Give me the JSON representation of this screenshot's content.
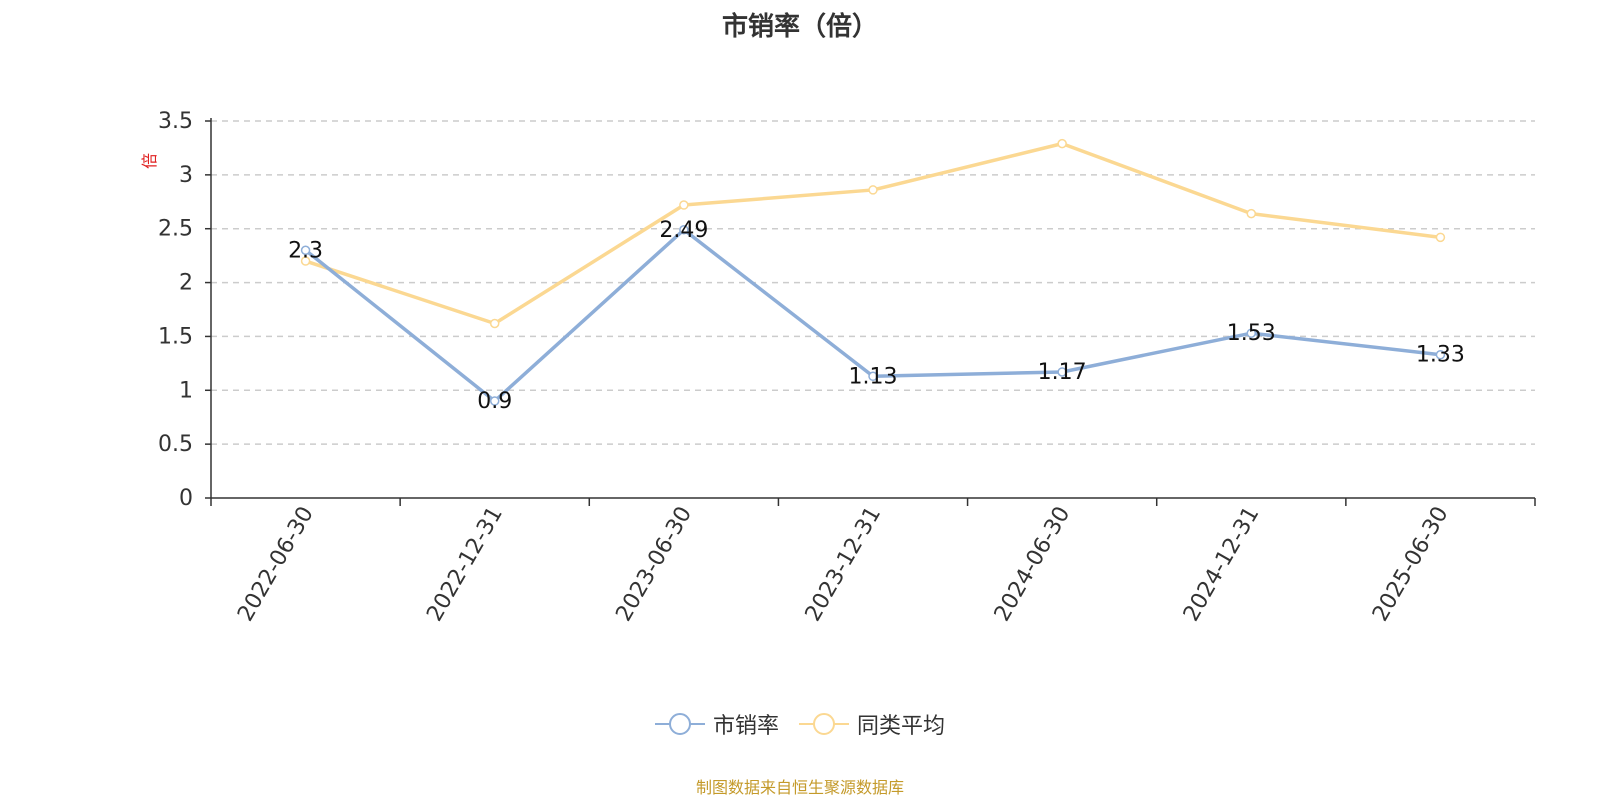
{
  "chart_data": {
    "type": "line",
    "title": "市销率（倍）",
    "ylabel": "倍",
    "xlabel": "",
    "categories": [
      "2022-06-30",
      "2022-12-31",
      "2023-06-30",
      "2023-12-31",
      "2024-06-30",
      "2024-12-31",
      "2025-06-30"
    ],
    "ylim": [
      0,
      3.5
    ],
    "yticks": [
      "0",
      "0.5",
      "1",
      "1.5",
      "2",
      "2.5",
      "3",
      "3.5"
    ],
    "grid": true,
    "legend_position": "bottom",
    "series": [
      {
        "name": "市销率",
        "color": "#8eaed8",
        "values": [
          2.3,
          0.9,
          2.49,
          1.13,
          1.17,
          1.53,
          1.33
        ],
        "labels": [
          "2.3",
          "0.9",
          "2.49",
          "1.13",
          "1.17",
          "1.53",
          "1.33"
        ]
      },
      {
        "name": "同类平均",
        "color": "#fbd892",
        "values": [
          2.2,
          1.62,
          2.72,
          2.86,
          3.29,
          2.64,
          2.42
        ]
      }
    ]
  },
  "source": "制图数据来自恒生聚源数据库"
}
